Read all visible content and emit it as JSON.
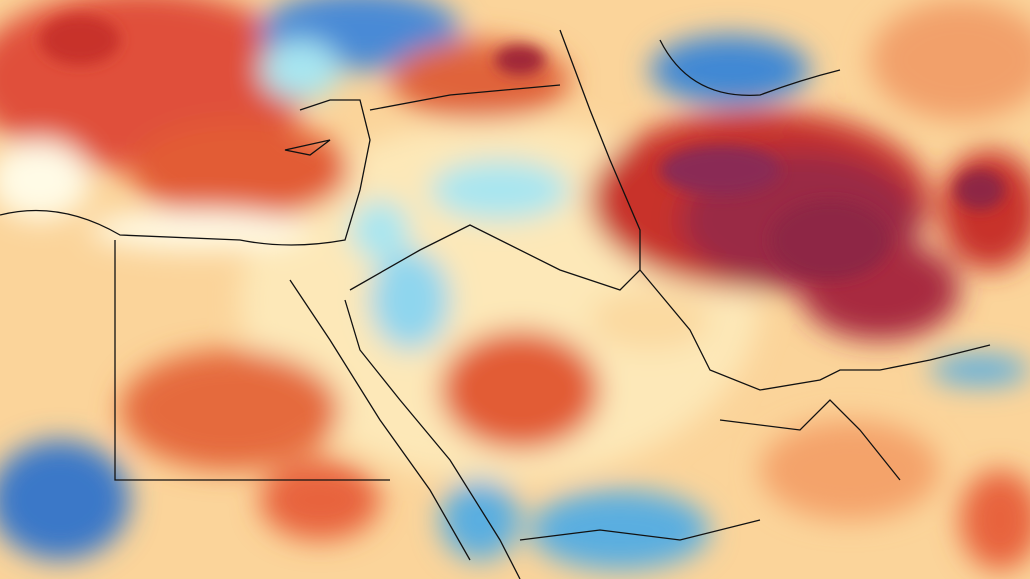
{
  "map": {
    "palette": {
      "very_warm": "#8e2544",
      "warm_dark": "#c8302a",
      "warm": "#e8643c",
      "mild_warm": "#f4a36a",
      "slight_warm": "#fbd9a0",
      "neutral": "#fffbe6",
      "slight_cool": "#a8e6f0",
      "cool": "#5aaee0",
      "cold": "#2d6fc0",
      "border": "#111111"
    }
  }
}
